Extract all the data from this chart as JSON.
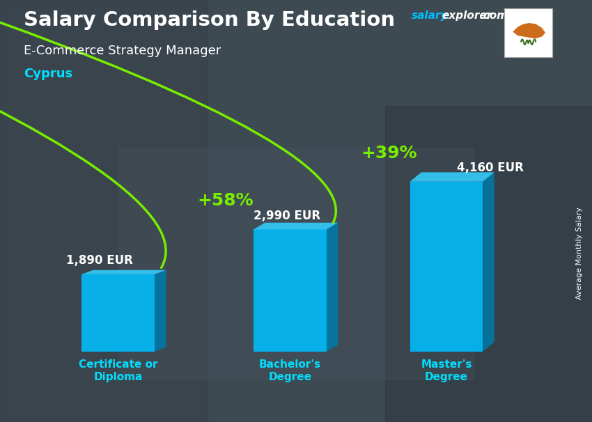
{
  "title_main": "Salary Comparison By Education",
  "title_sub": "E-Commerce Strategy Manager",
  "title_country": "Cyprus",
  "categories": [
    "Certificate or\nDiploma",
    "Bachelor's\nDegree",
    "Master's\nDegree"
  ],
  "values": [
    1890,
    2990,
    4160
  ],
  "labels": [
    "1,890 EUR",
    "2,990 EUR",
    "4,160 EUR"
  ],
  "pct_labels": [
    "+58%",
    "+39%"
  ],
  "bar_color_face": "#00BFFF",
  "bar_color_side": "#007AA8",
  "bar_color_top": "#33CFFF",
  "bg_color": "#4a5a6a",
  "text_color_white": "#FFFFFF",
  "text_color_cyan": "#00DFFF",
  "text_color_green": "#77EE00",
  "arrow_color": "#77EE00",
  "ylabel": "Average Monthly Salary",
  "figsize": [
    8.5,
    6.06
  ],
  "dpi": 100
}
